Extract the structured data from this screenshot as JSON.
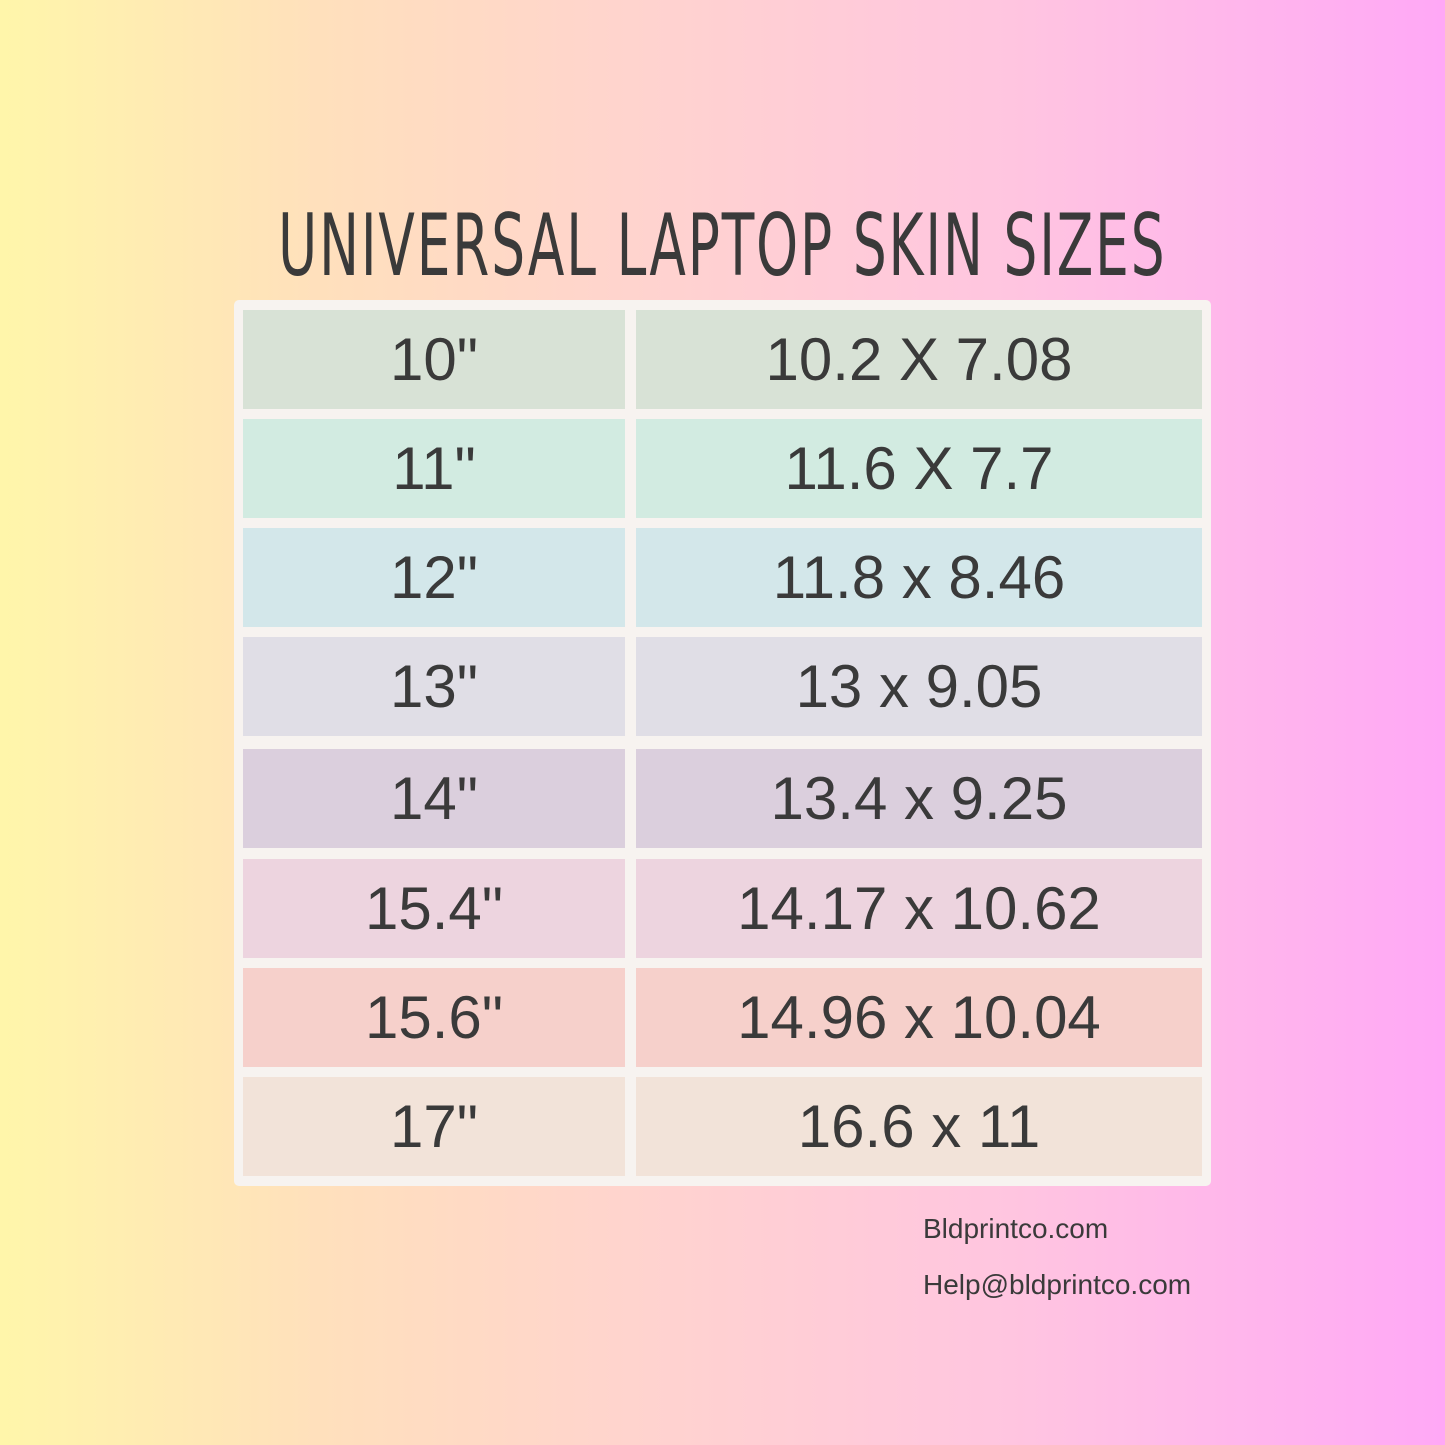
{
  "title": "UNIVERSAL LAPTOP SKIN SIZES",
  "rows": [
    {
      "size": "10\"",
      "dimensions": "10.2 X 7.08",
      "color": "#d8e2d6"
    },
    {
      "size": "11\"",
      "dimensions": "11.6 X 7.7",
      "color": "#d2ebe1"
    },
    {
      "size": "12\"",
      "dimensions": "11.8 x 8.46",
      "color": "#d3e7ea"
    },
    {
      "size": "13\"",
      "dimensions": "13 x 9.05",
      "color": "#e0dee6"
    },
    {
      "size": "14\"",
      "dimensions": "13.4 x 9.25",
      "color": "#dbcfdd"
    },
    {
      "size": "15.4\"",
      "dimensions": "14.17 x 10.62",
      "color": "#edd4df"
    },
    {
      "size": "15.6\"",
      "dimensions": "14.96 x 10.04",
      "color": "#f6d0cb"
    },
    {
      "size": "17\"",
      "dimensions": "16.6 x 11",
      "color": "#f2e3d9"
    }
  ],
  "footer": {
    "website": "Bldprintco.com",
    "email": "Help@bldprintco.com"
  }
}
